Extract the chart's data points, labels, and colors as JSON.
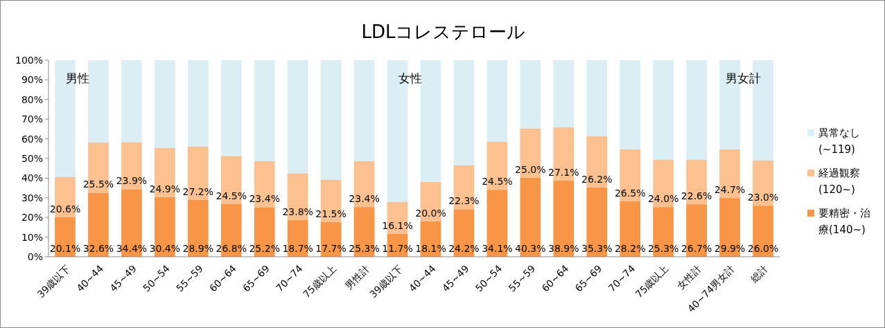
{
  "chart_data": {
    "type": "bar",
    "stacked": true,
    "title": "LDLコレステロール",
    "categories": [
      "39歳以下",
      "40~44",
      "45~49",
      "50~54",
      "55~59",
      "60~64",
      "65~69",
      "70~74",
      "75歳以上",
      "男性計",
      "39歳以下",
      "40~44",
      "45~49",
      "50~54",
      "55~59",
      "60~64",
      "65~69",
      "70~74",
      "75歳以上",
      "女性計",
      "40~74男女計",
      "総計"
    ],
    "series": [
      {
        "name": "要精密・治療(140~)",
        "color": "#f79646",
        "values": [
          20.1,
          32.6,
          34.4,
          30.4,
          28.9,
          26.8,
          25.2,
          18.7,
          17.7,
          25.3,
          11.7,
          18.1,
          24.2,
          34.1,
          40.3,
          38.9,
          35.3,
          28.2,
          25.3,
          26.7,
          29.9,
          26.0
        ],
        "value_labels": [
          "20.1%",
          "32.6%",
          "34.4%",
          "30.4%",
          "28.9%",
          "26.8%",
          "25.2%",
          "18.7%",
          "17.7%",
          "25.3%",
          "11.7%",
          "18.1%",
          "24.2%",
          "34.1%",
          "40.3%",
          "38.9%",
          "35.3%",
          "28.2%",
          "25.3%",
          "26.7%",
          "29.9%",
          "26.0%"
        ]
      },
      {
        "name": "経過観察(120~)",
        "color": "#fac090",
        "values": [
          20.6,
          25.5,
          23.9,
          24.9,
          27.2,
          24.5,
          23.4,
          23.8,
          21.5,
          23.4,
          16.1,
          20.0,
          22.3,
          24.5,
          25.0,
          27.1,
          26.2,
          26.5,
          24.0,
          22.6,
          24.7,
          23.0
        ],
        "value_labels": [
          "20.6%",
          "25.5%",
          "23.9%",
          "24.9%",
          "27.2%",
          "24.5%",
          "23.4%",
          "23.8%",
          "21.5%",
          "23.4%",
          "16.1%",
          "20.0%",
          "22.3%",
          "24.5%",
          "25.0%",
          "27.1%",
          "26.2%",
          "26.5%",
          "24.0%",
          "22.6%",
          "24.7%",
          "23.0%"
        ]
      },
      {
        "name": "異常なし(~119)",
        "color": "#dbeef4",
        "values": [
          59.3,
          41.9,
          41.7,
          44.7,
          43.9,
          48.7,
          51.4,
          57.5,
          60.8,
          51.3,
          72.2,
          61.9,
          53.5,
          41.4,
          34.7,
          34.0,
          38.5,
          45.3,
          50.7,
          50.7,
          45.4,
          51.0
        ]
      }
    ],
    "ylim": [
      0,
      100
    ],
    "yticks": [
      {
        "value": 0,
        "label": "0%"
      },
      {
        "value": 10,
        "label": "10%"
      },
      {
        "value": 20,
        "label": "20%"
      },
      {
        "value": 30,
        "label": "30%"
      },
      {
        "value": 40,
        "label": "40%"
      },
      {
        "value": 50,
        "label": "50%"
      },
      {
        "value": 60,
        "label": "60%"
      },
      {
        "value": 70,
        "label": "70%"
      },
      {
        "value": 80,
        "label": "80%"
      },
      {
        "value": 90,
        "label": "90%"
      },
      {
        "value": 100,
        "label": "100%"
      }
    ],
    "annotations": [
      "男性",
      "女性",
      "男女計"
    ],
    "legend": "right",
    "grid": false
  }
}
